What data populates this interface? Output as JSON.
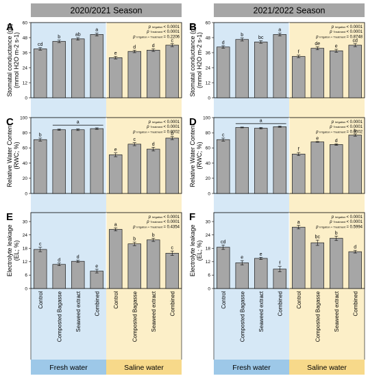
{
  "figure": {
    "seasons": [
      "2020/2021 Season",
      "2021/2022 Season"
    ],
    "categories": [
      "Control",
      "Composted Bagasse",
      "Seaweed extract",
      "Combined",
      "Control",
      "Composted Bagasse",
      "Seaweed extract",
      "Combined"
    ],
    "water_groups": [
      "Fresh water",
      "Saline water"
    ],
    "colors": {
      "fresh_bg": "#d6e8f6",
      "saline_bg": "#fcefc8",
      "fresh_label": "#9dc8e8",
      "saline_label": "#f7d98a",
      "bar": "#a6a6a6",
      "season_header": "#a6a6a6"
    }
  },
  "chart_data": [
    {
      "panel": "A",
      "type": "bar",
      "season": "2020/2021 Season",
      "ylabel_line1": "Stomatal conductance (gs)",
      "ylabel_line2": "(mmol H2O m-2 s-1)",
      "ylim": [
        0,
        60
      ],
      "yticks": [
        0,
        12,
        24,
        36,
        48,
        60
      ],
      "values": [
        39,
        45,
        47,
        50.5,
        32,
        37,
        38,
        42
      ],
      "errors": [
        1.0,
        1.0,
        1.0,
        1.2,
        1.0,
        1.0,
        1.0,
        1.2
      ],
      "letters": [
        "cd",
        "b",
        "ab",
        "a",
        "e",
        "d",
        "d",
        "c"
      ],
      "stats": [
        {
          "name": "Irrigation",
          "value": "< 0.0001"
        },
        {
          "name": "Treatment",
          "value": "< 0.0001"
        },
        {
          "name": "Irrigation × Treatment",
          "value": "= 0.2206"
        }
      ],
      "bracket": null
    },
    {
      "panel": "B",
      "type": "bar",
      "season": "2021/2022 Season",
      "ylabel_line1": "Stomatal conductance (gs)",
      "ylabel_line2": "(mmol H2O m-2 s-1)",
      "ylim": [
        0,
        60
      ],
      "yticks": [
        0,
        12,
        24,
        36,
        48,
        60
      ],
      "values": [
        40.5,
        46.5,
        44.5,
        50.5,
        33,
        39.5,
        37.5,
        42
      ],
      "errors": [
        1.0,
        1.2,
        1.0,
        1.2,
        1.0,
        1.2,
        1.2,
        1.2
      ],
      "letters": [
        "d",
        "b",
        "bc",
        "a",
        "f",
        "de",
        "e",
        "cd"
      ],
      "stats": [
        {
          "name": "Irrigation",
          "value": "< 0.0001"
        },
        {
          "name": "Treatment",
          "value": "< 0.0001"
        },
        {
          "name": "Irrigation × Treatment",
          "value": "= 0.8748"
        }
      ],
      "bracket": null
    },
    {
      "panel": "C",
      "type": "bar",
      "season": "2020/2021 Season",
      "ylabel_line1": "Relative Water Content",
      "ylabel_line2": "(RWC; %)",
      "ylim": [
        0,
        100
      ],
      "yticks": [
        0,
        20,
        40,
        60,
        80,
        100
      ],
      "values": [
        71,
        84,
        84,
        85.5,
        51,
        65,
        58.5,
        73
      ],
      "errors": [
        2.0,
        0.8,
        1.0,
        1.0,
        2.5,
        2.0,
        2.5,
        2.0
      ],
      "letters": [
        "b",
        "",
        "",
        "",
        "e",
        "c",
        "d",
        "b"
      ],
      "stats": [
        {
          "name": "Irrigation",
          "value": "< 0.0001"
        },
        {
          "name": "Treatment",
          "value": "< 0.0001"
        },
        {
          "name": "Irrigation × Treatment",
          "value": "= 0.0002"
        }
      ],
      "bracket": {
        "from": 1,
        "to": 3,
        "y": 90,
        "label": "a"
      }
    },
    {
      "panel": "D",
      "type": "bar",
      "season": "2021/2022 Season",
      "ylabel_line1": "Relative Water Content",
      "ylabel_line2": "(RWC; %)",
      "ylim": [
        0,
        100
      ],
      "yticks": [
        0,
        20,
        40,
        60,
        80,
        100
      ],
      "values": [
        71,
        87,
        86,
        88,
        52,
        68,
        64.5,
        77
      ],
      "errors": [
        2.0,
        0.5,
        1.0,
        0.8,
        2.0,
        0.5,
        1.0,
        1.5
      ],
      "letters": [
        "c",
        "",
        "",
        "",
        "f",
        "e",
        "d",
        "b"
      ],
      "stats": [
        {
          "name": "Irrigation",
          "value": "< 0.0001"
        },
        {
          "name": "Treatment",
          "value": "< 0.0001"
        },
        {
          "name": "Irrigation × Treatment",
          "value": "= 0.0002"
        }
      ],
      "bracket": {
        "from": 1,
        "to": 3,
        "y": 92,
        "label": "a"
      }
    },
    {
      "panel": "E",
      "type": "bar",
      "season": "2020/2021 Season",
      "ylabel_line1": "Electrolyte leakage",
      "ylabel_line2": "(EL; %)",
      "ylim": [
        0,
        34
      ],
      "yticks": [
        0,
        6,
        12,
        18,
        24,
        30
      ],
      "values": [
        17.5,
        10.8,
        12.2,
        7.8,
        26.5,
        20,
        21.8,
        15.8
      ],
      "errors": [
        1.0,
        0.6,
        0.5,
        0.8,
        0.7,
        0.8,
        0.7,
        1.0
      ],
      "letters": [
        "c",
        "d",
        "d",
        "e",
        "a",
        "b",
        "b",
        "c"
      ],
      "stats": [
        {
          "name": "Irrigation",
          "value": "< 0.0001"
        },
        {
          "name": "Treatment",
          "value": "< 0.0001"
        },
        {
          "name": "Irrigation × Treatment",
          "value": "= 0.4354"
        }
      ],
      "bracket": null
    },
    {
      "panel": "F",
      "type": "bar",
      "season": "2021/2022 Season",
      "ylabel_line1": "Electrolyte leakage",
      "ylabel_line2": "(EL; %)",
      "ylim": [
        0,
        34
      ],
      "yticks": [
        0,
        6,
        12,
        18,
        24,
        30
      ],
      "values": [
        18.5,
        11.5,
        13.5,
        8.7,
        27.5,
        20.5,
        22.5,
        16.5
      ],
      "errors": [
        1.0,
        1.0,
        0.5,
        1.2,
        0.8,
        1.2,
        1.0,
        0.6
      ],
      "letters": [
        "cd",
        "e",
        "e",
        "f",
        "a",
        "bc",
        "b",
        "d"
      ],
      "stats": [
        {
          "name": "Irrigation",
          "value": "< 0.0001"
        },
        {
          "name": "Treatment",
          "value": "< 0.0001"
        },
        {
          "name": "Irrigation × Treatment",
          "value": "= 0.5994"
        }
      ],
      "bracket": null
    }
  ]
}
